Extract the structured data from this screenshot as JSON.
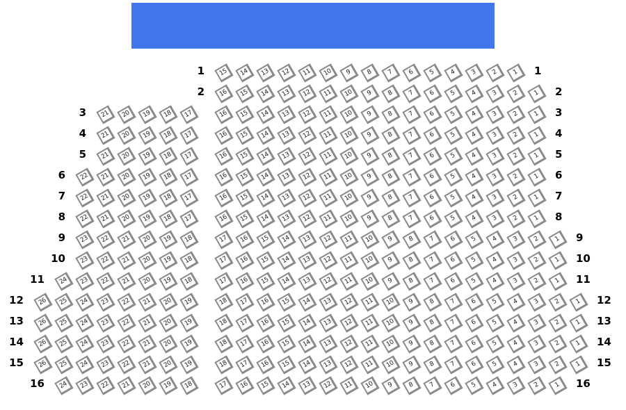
{
  "stage": {
    "label": "",
    "color": "#4176ee"
  },
  "rows": [
    {
      "label": "1",
      "left": [],
      "right": [
        15,
        14,
        13,
        12,
        11,
        10,
        9,
        8,
        7,
        6,
        5,
        4,
        3,
        2,
        1
      ]
    },
    {
      "label": "2",
      "left": [],
      "right": [
        16,
        15,
        14,
        13,
        12,
        11,
        10,
        9,
        8,
        7,
        6,
        5,
        4,
        3,
        2,
        1
      ]
    },
    {
      "label": "3",
      "left": [
        21,
        20,
        19,
        18,
        17
      ],
      "right": [
        16,
        15,
        14,
        13,
        12,
        11,
        10,
        9,
        8,
        7,
        6,
        5,
        4,
        3,
        2,
        1
      ]
    },
    {
      "label": "4",
      "left": [
        21,
        20,
        19,
        18,
        17
      ],
      "right": [
        16,
        15,
        14,
        13,
        12,
        11,
        10,
        9,
        8,
        7,
        6,
        5,
        4,
        3,
        2,
        1
      ]
    },
    {
      "label": "5",
      "left": [
        21,
        20,
        19,
        18,
        17
      ],
      "right": [
        16,
        15,
        14,
        13,
        12,
        11,
        10,
        9,
        8,
        7,
        6,
        5,
        4,
        3,
        2,
        1
      ]
    },
    {
      "label": "6",
      "left": [
        22,
        21,
        20,
        19,
        18,
        17
      ],
      "right": [
        16,
        15,
        14,
        13,
        12,
        11,
        10,
        9,
        8,
        7,
        6,
        5,
        4,
        3,
        2,
        1
      ]
    },
    {
      "label": "7",
      "left": [
        22,
        21,
        20,
        19,
        18,
        17
      ],
      "right": [
        16,
        15,
        14,
        13,
        12,
        11,
        10,
        9,
        8,
        7,
        6,
        5,
        4,
        3,
        2,
        1
      ]
    },
    {
      "label": "8",
      "left": [
        22,
        21,
        20,
        19,
        18,
        17
      ],
      "right": [
        16,
        15,
        14,
        13,
        12,
        11,
        10,
        9,
        8,
        7,
        6,
        5,
        4,
        3,
        2,
        1
      ]
    },
    {
      "label": "9",
      "left": [
        23,
        22,
        21,
        20,
        19,
        18
      ],
      "right": [
        17,
        16,
        15,
        14,
        13,
        12,
        11,
        10,
        9,
        8,
        7,
        6,
        5,
        4,
        3,
        2,
        1
      ]
    },
    {
      "label": "10",
      "left": [
        23,
        22,
        21,
        20,
        19,
        18
      ],
      "right": [
        17,
        16,
        15,
        14,
        13,
        12,
        11,
        10,
        9,
        8,
        7,
        6,
        5,
        4,
        3,
        2,
        1
      ]
    },
    {
      "label": "11",
      "left": [
        24,
        23,
        22,
        21,
        20,
        19,
        18
      ],
      "right": [
        17,
        16,
        15,
        14,
        13,
        12,
        11,
        10,
        9,
        8,
        7,
        6,
        5,
        4,
        3,
        2,
        1
      ]
    },
    {
      "label": "12",
      "left": [
        26,
        25,
        24,
        23,
        22,
        21,
        20,
        19
      ],
      "right": [
        18,
        17,
        16,
        15,
        14,
        13,
        12,
        11,
        10,
        9,
        8,
        7,
        6,
        5,
        4,
        3,
        2,
        1
      ]
    },
    {
      "label": "13",
      "left": [
        26,
        25,
        24,
        23,
        22,
        21,
        20,
        19
      ],
      "right": [
        18,
        17,
        16,
        15,
        14,
        13,
        12,
        11,
        10,
        9,
        8,
        7,
        6,
        5,
        4,
        3,
        2,
        1
      ]
    },
    {
      "label": "14",
      "left": [
        26,
        25,
        24,
        23,
        22,
        21,
        20,
        19
      ],
      "right": [
        18,
        17,
        16,
        15,
        14,
        13,
        12,
        11,
        10,
        9,
        8,
        7,
        6,
        5,
        4,
        3,
        2,
        1
      ]
    },
    {
      "label": "15",
      "left": [
        26,
        25,
        24,
        23,
        22,
        21,
        20,
        19
      ],
      "right": [
        18,
        17,
        16,
        15,
        14,
        13,
        12,
        11,
        10,
        9,
        8,
        7,
        6,
        5,
        4,
        3,
        2,
        1
      ]
    },
    {
      "label": "16",
      "left": [
        24,
        23,
        22,
        21,
        20,
        19,
        18
      ],
      "right": [
        17,
        16,
        15,
        14,
        13,
        12,
        11,
        10,
        9,
        8,
        7,
        6,
        5,
        4,
        3,
        2,
        1
      ]
    }
  ]
}
